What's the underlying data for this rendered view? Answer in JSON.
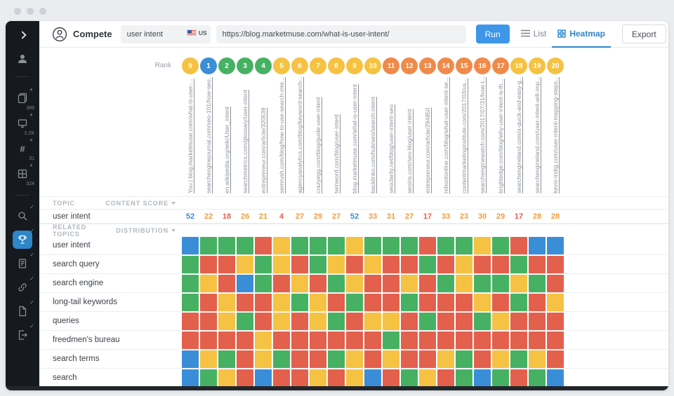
{
  "toolbar": {
    "app_name": "Compete",
    "keyword_input": "user intent",
    "locale": "US",
    "url_input": "https://blog.marketmuse.com/what-is-user-intent/",
    "run_label": "Run",
    "list_label": "List",
    "heatmap_label": "Heatmap",
    "export_label": "Export",
    "help_icon": "?"
  },
  "sidebar": {
    "tools": [
      {
        "icon": "pages",
        "plus": "+",
        "count": "389"
      },
      {
        "icon": "monitor",
        "plus": "+",
        "count": "2.2K"
      },
      {
        "icon": "hash",
        "plus": "+",
        "count": "31"
      },
      {
        "icon": "grid",
        "plus": "+",
        "count": "324"
      }
    ],
    "apps": [
      {
        "icon": "search",
        "check": "✓"
      },
      {
        "icon": "trophy",
        "check": "✓",
        "active": true
      },
      {
        "icon": "document",
        "check": "✓"
      },
      {
        "icon": "link",
        "check": "✓"
      },
      {
        "icon": "file",
        "check": "✓"
      },
      {
        "icon": "exit",
        "check": "✓"
      }
    ]
  },
  "rank": {
    "label": "Rank",
    "circles": [
      {
        "value": "9",
        "color": "yellow"
      },
      {
        "value": "1",
        "color": "blue"
      },
      {
        "value": "2",
        "color": "green"
      },
      {
        "value": "3",
        "color": "green"
      },
      {
        "value": "4",
        "color": "green"
      },
      {
        "value": "5",
        "color": "yellow"
      },
      {
        "value": "6",
        "color": "yellow"
      },
      {
        "value": "7",
        "color": "yellow"
      },
      {
        "value": "8",
        "color": "yellow"
      },
      {
        "value": "9",
        "color": "yellow"
      },
      {
        "value": "10",
        "color": "yellow"
      },
      {
        "value": "11",
        "color": "orange"
      },
      {
        "value": "12",
        "color": "orange"
      },
      {
        "value": "13",
        "color": "orange"
      },
      {
        "value": "14",
        "color": "orange"
      },
      {
        "value": "15",
        "color": "orange"
      },
      {
        "value": "16",
        "color": "orange"
      },
      {
        "value": "17",
        "color": "orange"
      },
      {
        "value": "18",
        "color": "yellow"
      },
      {
        "value": "19",
        "color": "yellow"
      },
      {
        "value": "20",
        "color": "yellow"
      }
    ]
  },
  "columns": [
    "You | blog.marketmuse.com/what-is-user-...",
    "searchenginejournal.com/seo-101/how-seo...",
    "en.wikipedia.org/wiki/User_intent",
    "searchmetrics.com/glossary/user-intent",
    "entrepreneur.com/article/320539",
    "semrush.com/blog/how-to-use-search-inte...",
    "agencyanalytics.com/blog/keyword-search-...",
    "crazyegg.com/blog/guide-user-intent",
    "twinword.com/blog/user-intent",
    "blog.marketmuse.com/what-is-user-intent",
    "backlinko.com/hub/seo/search-intent",
    "seoclarity.net/blog/user-intent-seo",
    "seoins.com/seo-blog/user-intent",
    "entrepreneur.com/article/294850",
    "rebootonline.com/blog/what-user-intent-se...",
    "contentmarketinginstitute.com/2017/03/us...",
    "searchenginewatch.com/2017/07/31/how-t...",
    "brightedge.com/blog/why-user-intent-is-th...",
    "searchengineland.com/a-quick-and-easy-g...",
    "searchengineland.com/user-intent-will-imp...",
    "kevin-indig.com/user-intent-mapping-steps..."
  ],
  "topic": {
    "header_topic": "TOPIC",
    "header_score": "CONTENT SCORE",
    "name": "user intent",
    "scores": [
      {
        "value": "52",
        "color": "blue"
      },
      {
        "value": "22",
        "color": "amber"
      },
      {
        "value": "18",
        "color": "red"
      },
      {
        "value": "26",
        "color": "amber"
      },
      {
        "value": "21",
        "color": "amber"
      },
      {
        "value": "4",
        "color": "red"
      },
      {
        "value": "27",
        "color": "amber"
      },
      {
        "value": "29",
        "color": "amber"
      },
      {
        "value": "27",
        "color": "amber"
      },
      {
        "value": "52",
        "color": "blue"
      },
      {
        "value": "33",
        "color": "amber"
      },
      {
        "value": "31",
        "color": "amber"
      },
      {
        "value": "27",
        "color": "amber"
      },
      {
        "value": "17",
        "color": "red"
      },
      {
        "value": "33",
        "color": "amber"
      },
      {
        "value": "23",
        "color": "amber"
      },
      {
        "value": "30",
        "color": "amber"
      },
      {
        "value": "29",
        "color": "amber"
      },
      {
        "value": "17",
        "color": "red"
      },
      {
        "value": "28",
        "color": "amber"
      },
      {
        "value": "28",
        "color": "amber"
      }
    ]
  },
  "related": {
    "header_topics": "RELATED TOPICS",
    "header_dist": "DISTRIBUTION",
    "rows": [
      {
        "label": "user intent",
        "cells": [
          "blue",
          "green",
          "green",
          "green",
          "red",
          "yellow",
          "green",
          "green",
          "green",
          "yellow",
          "green",
          "green",
          "green",
          "red",
          "green",
          "green",
          "yellow",
          "green",
          "red",
          "blue",
          "blue"
        ]
      },
      {
        "label": "search query",
        "cells": [
          "green",
          "red",
          "red",
          "yellow",
          "green",
          "yellow",
          "red",
          "green",
          "yellow",
          "red",
          "yellow",
          "red",
          "red",
          "green",
          "red",
          "yellow",
          "red",
          "red",
          "green",
          "red",
          "red"
        ]
      },
      {
        "label": "search engine",
        "cells": [
          "green",
          "yellow",
          "red",
          "blue",
          "green",
          "red",
          "yellow",
          "red",
          "green",
          "yellow",
          "red",
          "red",
          "yellow",
          "red",
          "green",
          "yellow",
          "green",
          "green",
          "yellow",
          "green",
          "red"
        ]
      },
      {
        "label": "long-tail keywords",
        "cells": [
          "green",
          "red",
          "yellow",
          "red",
          "red",
          "yellow",
          "green",
          "yellow",
          "red",
          "green",
          "red",
          "red",
          "green",
          "red",
          "red",
          "red",
          "yellow",
          "red",
          "green",
          "red",
          "yellow"
        ]
      },
      {
        "label": "queries",
        "cells": [
          "red",
          "red",
          "yellow",
          "green",
          "red",
          "yellow",
          "red",
          "yellow",
          "green",
          "red",
          "yellow",
          "yellow",
          "red",
          "green",
          "red",
          "red",
          "green",
          "yellow",
          "red",
          "red",
          "red"
        ]
      },
      {
        "label": "freedmen's bureau",
        "cells": [
          "red",
          "red",
          "red",
          "red",
          "yellow",
          "red",
          "red",
          "red",
          "red",
          "red",
          "red",
          "green",
          "red",
          "red",
          "red",
          "red",
          "red",
          "red",
          "red",
          "red",
          "red"
        ]
      },
      {
        "label": "search terms",
        "cells": [
          "blue",
          "yellow",
          "green",
          "red",
          "yellow",
          "green",
          "red",
          "red",
          "green",
          "yellow",
          "red",
          "yellow",
          "red",
          "red",
          "yellow",
          "green",
          "red",
          "yellow",
          "green",
          "yellow",
          "red"
        ]
      },
      {
        "label": "search",
        "cells": [
          "blue",
          "green",
          "yellow",
          "red",
          "blue",
          "red",
          "red",
          "yellow",
          "red",
          "yellow",
          "blue",
          "red",
          "green",
          "yellow",
          "red",
          "green",
          "blue",
          "green",
          "red",
          "green",
          "blue"
        ]
      }
    ]
  },
  "colors": {
    "blue": "#3a8ed8",
    "green": "#47b163",
    "yellow": "#f6c244",
    "orange": "#f08a4a",
    "red": "#e3604d",
    "amber": "#f09c3c"
  }
}
